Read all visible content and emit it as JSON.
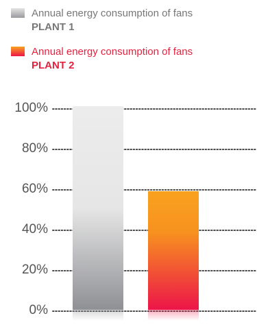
{
  "legend": [
    {
      "line1": "Annual energy consumption of fans",
      "line2": "PLANT 1",
      "text_color": "#777777",
      "swatch": "gray"
    },
    {
      "line1": "Annual energy consumption of fans",
      "line2": "PLANT 2",
      "text_color": "#e8213f",
      "swatch": "orange-red"
    }
  ],
  "colors": {
    "gray_top": "#ececec",
    "gray_bottom": "#8f9094",
    "orange_top": "#f9a21f",
    "red_bottom": "#ec1549",
    "grid_dots": "#4a4a4a",
    "tick_text": "#555555"
  },
  "chart_data": {
    "type": "bar",
    "categories": [
      "PLANT 1",
      "PLANT 2"
    ],
    "values": [
      100,
      58
    ],
    "y_ticks": [
      "0%",
      "20%",
      "40%",
      "60%",
      "80%",
      "100%"
    ],
    "ylim": [
      0,
      100
    ],
    "grid": true,
    "legend_position": "top-left",
    "xlabel": "",
    "ylabel": ""
  }
}
